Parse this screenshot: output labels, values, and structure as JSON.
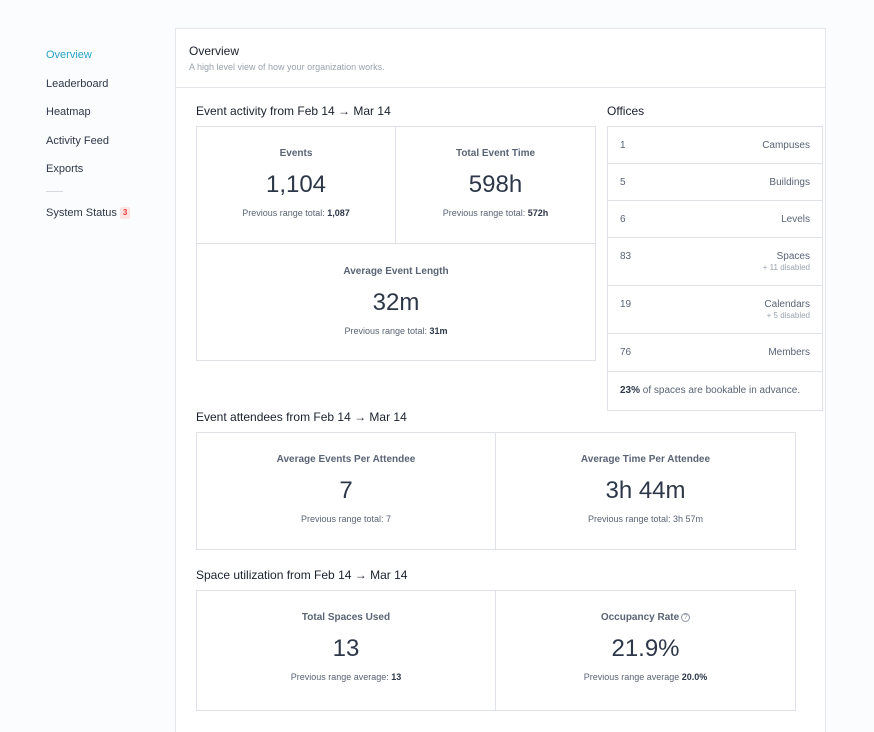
{
  "sidebar": {
    "items": [
      {
        "label": "Overview"
      },
      {
        "label": "Leaderboard"
      },
      {
        "label": "Heatmap"
      },
      {
        "label": "Activity Feed"
      },
      {
        "label": "Exports"
      }
    ],
    "system_status": {
      "label": "System Status",
      "badge": "3"
    }
  },
  "header": {
    "title": "Overview",
    "subtitle": "A high level view of how your organization works."
  },
  "event_activity": {
    "title": "Event activity from Feb 14 → Mar 14",
    "events": {
      "label": "Events",
      "value": "1,104",
      "prev_label": "Previous range total:",
      "prev_value": "1,087"
    },
    "total_time": {
      "label": "Total Event Time",
      "value": "598h",
      "prev_label": "Previous range total:",
      "prev_value": "572h"
    },
    "avg_length": {
      "label": "Average Event Length",
      "value": "32m",
      "prev_label": "Previous range total:",
      "prev_value": "31m"
    }
  },
  "offices": {
    "title": "Offices",
    "rows": [
      {
        "count": "1",
        "label": "Campuses",
        "sub": ""
      },
      {
        "count": "5",
        "label": "Buildings",
        "sub": ""
      },
      {
        "count": "6",
        "label": "Levels",
        "sub": ""
      },
      {
        "count": "83",
        "label": "Spaces",
        "sub": "+ 11 disabled"
      },
      {
        "count": "19",
        "label": "Calendars",
        "sub": "+ 5 disabled"
      },
      {
        "count": "76",
        "label": "Members",
        "sub": ""
      }
    ],
    "footer_pct": "23%",
    "footer_text": " of spaces are bookable in advance."
  },
  "attendees": {
    "title": "Event attendees from Feb 14 → Mar 14",
    "avg_events": {
      "label": "Average Events Per Attendee",
      "value": "7",
      "prev": "Previous range total: 7"
    },
    "avg_time": {
      "label": "Average Time Per Attendee",
      "value": "3h 44m",
      "prev": "Previous range total: 3h 57m"
    }
  },
  "utilization": {
    "title": "Space utilization from Feb 14 → Mar 14",
    "spaces_used": {
      "label": "Total Spaces Used",
      "value": "13",
      "prev_label": "Previous range average:",
      "prev_value": "13"
    },
    "occupancy": {
      "label": "Occupancy Rate",
      "help_icon": "?",
      "value": "21.9%",
      "prev_label": "Previous range average",
      "prev_value": "20.0%"
    }
  },
  "colors": {
    "accent": "#27a2c7",
    "badge_bg": "#fde2e2",
    "badge_text": "#e53e3e"
  }
}
